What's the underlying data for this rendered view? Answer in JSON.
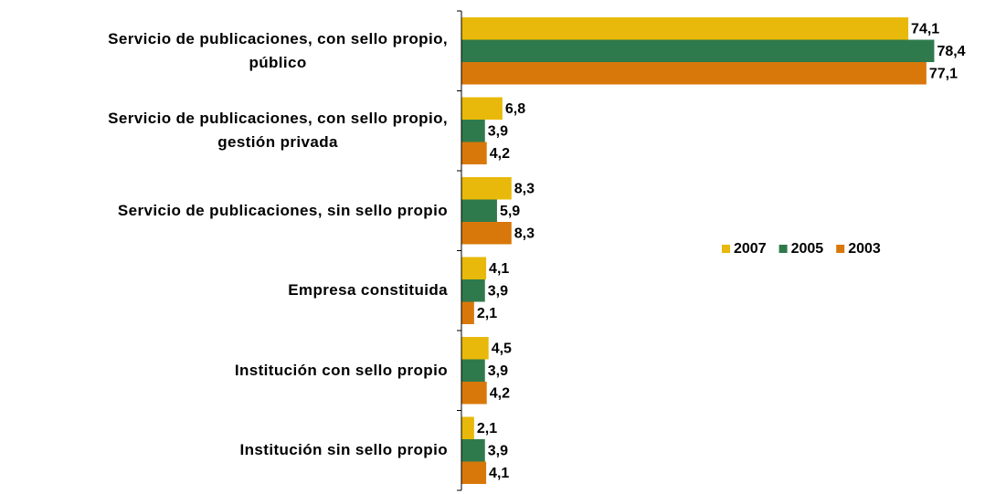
{
  "chart_data": {
    "type": "bar",
    "orientation": "horizontal",
    "categories": [
      "Servicio de publicaciones, con sello propio,\npúblico",
      "Servicio de publicaciones, con sello propio,\ngestión privada",
      "Servicio de publicaciones, sin sello propio",
      "Empresa constituida",
      "Institución con sello propio",
      "Institución sin sello propio"
    ],
    "series": [
      {
        "name": "2007",
        "color": "#e8b90a",
        "values": [
          74.1,
          6.8,
          8.3,
          4.1,
          4.5,
          2.1
        ],
        "value_labels": [
          "74,1",
          "6,8",
          "8,3",
          "4,1",
          "4,5",
          "2,1"
        ]
      },
      {
        "name": "2005",
        "color": "#2f7a4c",
        "values": [
          78.4,
          3.9,
          5.9,
          3.9,
          3.9,
          3.9
        ],
        "value_labels": [
          "78,4",
          "3,9",
          "5,9",
          "3,9",
          "3,9",
          "3,9"
        ]
      },
      {
        "name": "2003",
        "color": "#d9780a",
        "values": [
          77.1,
          4.2,
          8.3,
          2.1,
          4.2,
          4.1
        ],
        "value_labels": [
          "77,1",
          "4,2",
          "8,3",
          "2,1",
          "4,2",
          "4,1"
        ]
      }
    ],
    "xlim": [
      0,
      80
    ],
    "legend": "right"
  }
}
